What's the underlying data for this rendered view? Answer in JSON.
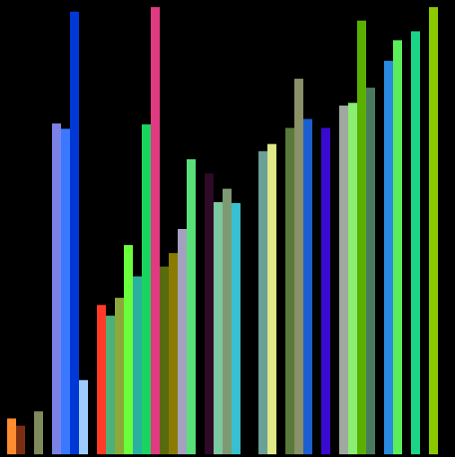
{
  "chart_data": {
    "type": "bar",
    "background": "#000000",
    "grid": false,
    "axes_visible": false,
    "legend": "none",
    "title": "",
    "xlabel": "",
    "ylabel": "",
    "ylim": [
      0,
      100
    ],
    "bars": [
      {
        "value": 8.0,
        "color": "#ff8c2e"
      },
      {
        "value": 6.4,
        "color": "#7a2e12"
      },
      {
        "value": null,
        "color": null
      },
      {
        "value": 9.6,
        "color": "#7e8a5a"
      },
      {
        "value": null,
        "color": null
      },
      {
        "value": 74.0,
        "color": "#7b82e6"
      },
      {
        "value": 72.8,
        "color": "#3a78ff"
      },
      {
        "value": 99.0,
        "color": "#0038d6"
      },
      {
        "value": 16.6,
        "color": "#9dcbff"
      },
      {
        "value": null,
        "color": null
      },
      {
        "value": 33.4,
        "color": "#ff3a26"
      },
      {
        "value": 31.0,
        "color": "#4cb07a"
      },
      {
        "value": 35.0,
        "color": "#8ca83a"
      },
      {
        "value": 46.8,
        "color": "#6aff3a"
      },
      {
        "value": 39.8,
        "color": "#2ab0a0"
      },
      {
        "value": 73.8,
        "color": "#1ad460"
      },
      {
        "value": 100.0,
        "color": "#e03a80"
      },
      {
        "value": 42.0,
        "color": "#5a6a0e"
      },
      {
        "value": 45.0,
        "color": "#8a7a00"
      },
      {
        "value": 50.4,
        "color": "#a4a0c0"
      },
      {
        "value": 66.0,
        "color": "#5ae07a"
      },
      {
        "value": null,
        "color": null
      },
      {
        "value": 62.8,
        "color": "#2e0a26"
      },
      {
        "value": 56.4,
        "color": "#7cc8a0"
      },
      {
        "value": 59.4,
        "color": "#7e9a72"
      },
      {
        "value": 56.2,
        "color": "#38c0d0"
      },
      {
        "value": null,
        "color": null
      },
      {
        "value": null,
        "color": null
      },
      {
        "value": 67.8,
        "color": "#6aa096"
      },
      {
        "value": 69.4,
        "color": "#e0e88a"
      },
      {
        "value": null,
        "color": null
      },
      {
        "value": 73.0,
        "color": "#5a7a3a"
      },
      {
        "value": 84.0,
        "color": "#8a9068"
      },
      {
        "value": 75.0,
        "color": "#1a5ed0"
      },
      {
        "value": null,
        "color": null
      },
      {
        "value": 73.0,
        "color": "#3a0ad0"
      },
      {
        "value": null,
        "color": null
      },
      {
        "value": 78.0,
        "color": "#a0a8a0"
      },
      {
        "value": 78.6,
        "color": "#8aee72"
      },
      {
        "value": 97.0,
        "color": "#5ab000"
      },
      {
        "value": 82.0,
        "color": "#4a7a5e"
      },
      {
        "value": null,
        "color": null
      },
      {
        "value": 88.0,
        "color": "#2a8ae0"
      },
      {
        "value": 92.6,
        "color": "#5aee5a"
      },
      {
        "value": null,
        "color": null
      },
      {
        "value": 94.6,
        "color": "#1ad488"
      },
      {
        "value": null,
        "color": null
      },
      {
        "value": 100.0,
        "color": "#8ac800"
      }
    ]
  }
}
